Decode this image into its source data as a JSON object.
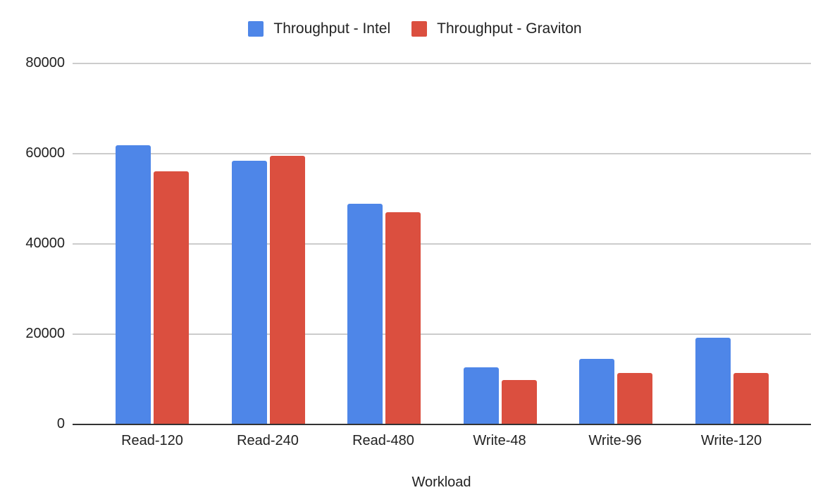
{
  "chart_data": {
    "type": "bar",
    "title": "",
    "xlabel": "Workload",
    "ylabel": "",
    "ylim": [
      0,
      80000
    ],
    "yticks": [
      "0",
      "20000",
      "40000",
      "60000",
      "80000"
    ],
    "grid": true,
    "legend_position": "top",
    "categories": [
      "Read-120",
      "Read-240",
      "Read-480",
      "Write-48",
      "Write-96",
      "Write-120"
    ],
    "series": [
      {
        "name": "Throughput - Intel",
        "color": "#4e86e8",
        "values": [
          61800,
          58400,
          48900,
          12700,
          14500,
          19200
        ]
      },
      {
        "name": "Throughput - Graviton",
        "color": "#db4f3f",
        "values": [
          56100,
          59500,
          47000,
          9800,
          11400,
          11400
        ]
      }
    ]
  }
}
